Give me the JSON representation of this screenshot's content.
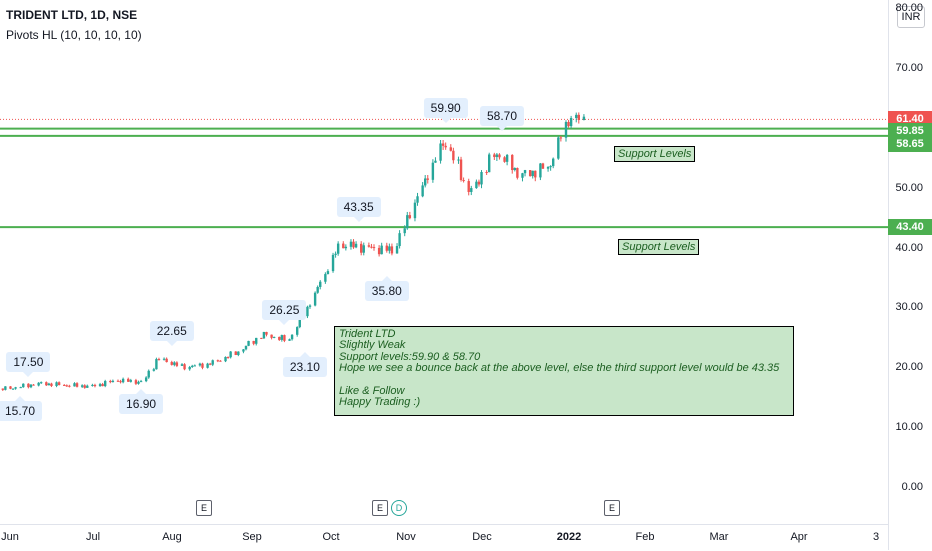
{
  "header": {
    "ticker": "TRIDENT LTD, 1D, NSE",
    "indicator": "Pivots HL (10, 10, 10, 10)",
    "currency": "INR"
  },
  "colors": {
    "up": "#26a69a",
    "down": "#ef5350",
    "support_line": "#4caf50",
    "price_line": "#ef5350",
    "note_bg": "#c8e6c9"
  },
  "chart_data": {
    "type": "candlestick",
    "title": "TRIDENT LTD, 1D, NSE",
    "ylim": [
      0,
      80
    ],
    "y_ticks": [
      "0.00",
      "10.00",
      "20.00",
      "30.00",
      "40.00",
      "50.00",
      "60.00",
      "70.00",
      "80.00"
    ],
    "x_ticks": [
      "Jun",
      "Jul",
      "Aug",
      "Sep",
      "Oct",
      "Nov",
      "Dec",
      "2022",
      "Feb",
      "Mar",
      "Apr",
      "3"
    ],
    "price_series": [
      {
        "date": "2021-06-01",
        "close": 16.2
      },
      {
        "date": "2021-06-10",
        "close": 16.6
      },
      {
        "date": "2021-06-20",
        "close": 17.3
      },
      {
        "date": "2021-06-30",
        "close": 17.0
      },
      {
        "date": "2021-07-10",
        "close": 16.8
      },
      {
        "date": "2021-07-20",
        "close": 17.8
      },
      {
        "date": "2021-07-30",
        "close": 17.5
      },
      {
        "date": "2021-08-05",
        "close": 21.5
      },
      {
        "date": "2021-08-15",
        "close": 20.0
      },
      {
        "date": "2021-08-25",
        "close": 20.5
      },
      {
        "date": "2021-09-05",
        "close": 22.5
      },
      {
        "date": "2021-09-15",
        "close": 25.5
      },
      {
        "date": "2021-09-25",
        "close": 24.5
      },
      {
        "date": "2021-10-05",
        "close": 32.0
      },
      {
        "date": "2021-10-15",
        "close": 40.5
      },
      {
        "date": "2021-10-25",
        "close": 40.0
      },
      {
        "date": "2021-11-05",
        "close": 39.5
      },
      {
        "date": "2021-11-15",
        "close": 49.0
      },
      {
        "date": "2021-11-25",
        "close": 58.0
      },
      {
        "date": "2021-12-05",
        "close": 49.0
      },
      {
        "date": "2021-12-15",
        "close": 56.0
      },
      {
        "date": "2021-12-25",
        "close": 52.0
      },
      {
        "date": "2022-01-05",
        "close": 53.5
      },
      {
        "date": "2022-01-12",
        "close": 61.5
      },
      {
        "date": "2022-01-18",
        "close": 61.4
      }
    ],
    "pivots": [
      {
        "label": "15.70",
        "kind": "low",
        "date": "2021-05-31",
        "value": 15.7
      },
      {
        "label": "17.50",
        "kind": "high",
        "date": "2021-06-15",
        "value": 17.5
      },
      {
        "label": "16.90",
        "kind": "low",
        "date": "2021-07-29",
        "value": 16.9
      },
      {
        "label": "22.65",
        "kind": "high",
        "date": "2021-08-10",
        "value": 22.65
      },
      {
        "label": "26.25",
        "kind": "high",
        "date": "2021-09-23",
        "value": 26.25
      },
      {
        "label": "23.10",
        "kind": "low",
        "date": "2021-10-01",
        "value": 23.1
      },
      {
        "label": "43.35",
        "kind": "high",
        "date": "2021-10-22",
        "value": 43.35
      },
      {
        "label": "35.80",
        "kind": "low",
        "date": "2021-11-02",
        "value": 35.8
      },
      {
        "label": "59.90",
        "kind": "high",
        "date": "2021-11-25",
        "value": 59.9
      },
      {
        "label": "58.70",
        "kind": "high",
        "date": "2021-12-17",
        "value": 58.7
      }
    ],
    "support_lines": [
      59.85,
      58.65,
      43.4
    ],
    "current_price": 61.4,
    "price_tags": [
      "61.40",
      "59.85",
      "58.65",
      "43.40"
    ],
    "support_labels": [
      "Support Levels",
      "Support Levels"
    ],
    "events": [
      "E",
      "E",
      "D",
      "E"
    ],
    "grid": false
  },
  "note": {
    "lines": [
      "Trident LTD",
      "Slightly Weak",
      "Support levels:59.90 & 58.70",
      "Hope we see a bounce back at the above level, else the third support level would be 43.35",
      "",
      "Like & Follow",
      "Happy Trading :)"
    ]
  }
}
